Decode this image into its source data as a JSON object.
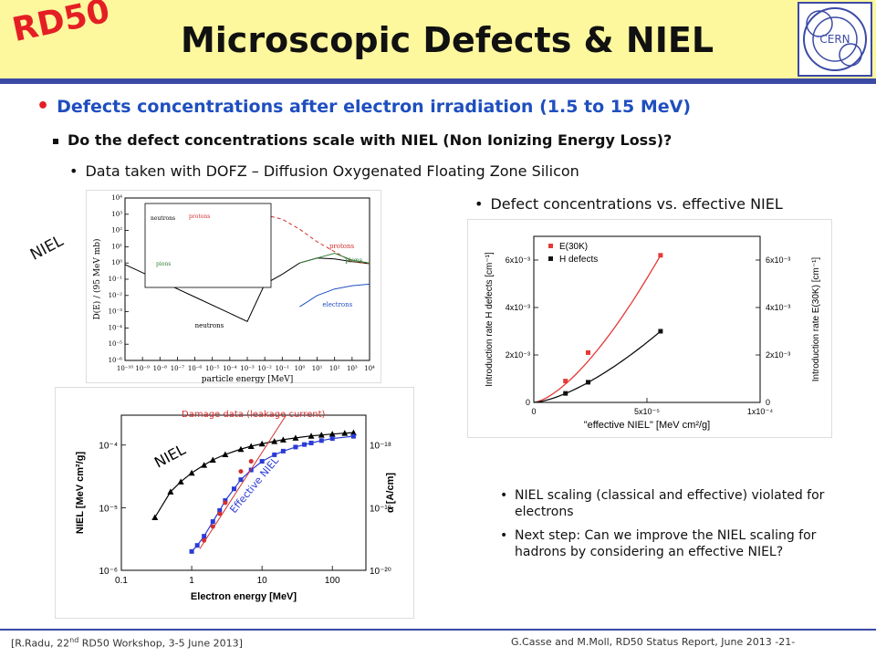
{
  "header": {
    "logo_text": "RD50",
    "title": "Microscopic Defects & NIEL",
    "cern_logo": "CERN"
  },
  "bullets": {
    "level1": "Defects concentrations after electron irradiation (1.5 to 15 MeV)",
    "level2": "Do the defect concentrations scale with NIEL (Non Ionizing Energy Loss)?",
    "level3": "Data taken with DOFZ – Diffusion Oxygenated Floating Zone Silicon",
    "level3b": "Defect concentrations vs. effective NIEL"
  },
  "niel_side_label": "NIEL",
  "right_bullets": [
    "NIEL scaling (classical and effective) violated for electrons",
    "Next step: Can we improve the NIEL scaling for hadrons by considering an effective NIEL?"
  ],
  "footer": {
    "left_prefix": "[R.Radu, 22",
    "left_sup": "nd",
    "left_suffix": " RD50 Workshop, 3-5 June 2013]",
    "right": "G.Casse and M.Moll, RD50 Status Report, June 2013 -21-"
  },
  "chart_data": [
    {
      "type": "line",
      "xlabel": "particle energy [MeV]",
      "ylabel": "D(E) / (95 MeV mb)",
      "xscale": "log",
      "yscale": "log",
      "xlim": [
        1e-10,
        10000
      ],
      "ylim": [
        1e-06,
        10000
      ],
      "xticks": [
        "10⁻¹⁰",
        "10⁻⁹",
        "10⁻⁸",
        "10⁻⁷",
        "10⁻⁶",
        "10⁻⁵",
        "10⁻⁴",
        "10⁻³",
        "10⁻²",
        "10⁻¹",
        "10⁰",
        "10¹",
        "10²",
        "10³",
        "10⁴"
      ],
      "yticks": [
        "10⁻⁶",
        "10⁻⁵",
        "10⁻⁴",
        "10⁻³",
        "10⁻²",
        "10⁻¹",
        "10⁰",
        "10¹",
        "10²",
        "10³",
        "10⁴"
      ],
      "annotations": [
        "neutrons",
        "protons",
        "pions",
        "electrons",
        "neutrons",
        "protons",
        "pions"
      ],
      "series": [
        {
          "name": "neutrons",
          "x": [
            1e-10,
            1e-08,
            1e-06,
            0.0001,
            0.001,
            0.01,
            0.1,
            1,
            10,
            100,
            1000,
            10000
          ],
          "y": [
            0.8,
            0.08,
            0.008,
            0.0008,
            0.00025,
            0.05,
            0.2,
            1,
            2,
            1.8,
            1.2,
            0.9
          ]
        },
        {
          "name": "protons",
          "x": [
            0.01,
            0.1,
            1,
            10,
            100,
            1000,
            10000
          ],
          "y": [
            900,
            500,
            120,
            20,
            5,
            1.2,
            0.9
          ]
        },
        {
          "name": "pions",
          "x": [
            1,
            10,
            100,
            1000,
            10000
          ],
          "y": [
            1,
            2,
            4,
            1.5,
            1
          ]
        },
        {
          "name": "electrons",
          "x": [
            1,
            10,
            100,
            1000,
            10000
          ],
          "y": [
            0.002,
            0.01,
            0.025,
            0.04,
            0.05
          ]
        }
      ],
      "colors": {
        "neutrons": "#000000",
        "protons": "#d32f2f",
        "pions": "#2e7d32",
        "electrons": "#1f4fbf"
      }
    },
    {
      "type": "scatter",
      "xlabel": "Electron energy [MeV]",
      "ylabel": "NIEL [MeV cm²/g]",
      "y2label": "α [A/cm]",
      "xscale": "log",
      "yscale": "log",
      "xlim": [
        0.1,
        300
      ],
      "ylim": [
        1e-06,
        0.0003
      ],
      "xticks": [
        "0.1",
        "1",
        "10",
        "100"
      ],
      "yticks": [
        "10⁻⁶",
        "10⁻⁵",
        "10⁻⁴"
      ],
      "y2ticks": [
        "10⁻²⁰",
        "10⁻¹⁹",
        "10⁻¹⁸"
      ],
      "annotations": [
        "Damage data (leakage current)",
        "NIEL",
        "Effective NIEL"
      ],
      "series": [
        {
          "name": "NIEL",
          "x": [
            0.3,
            0.5,
            0.7,
            1,
            1.5,
            2,
            3,
            5,
            7,
            10,
            15,
            20,
            30,
            50,
            70,
            100,
            150,
            200
          ],
          "y": [
            7e-06,
            1.8e-05,
            2.6e-05,
            3.6e-05,
            4.8e-05,
            5.8e-05,
            7.1e-05,
            8.6e-05,
            9.6e-05,
            0.000105,
            0.000115,
            0.000122,
            0.00013,
            0.00014,
            0.000145,
            0.00015,
            0.000155,
            0.000158
          ]
        },
        {
          "name": "Effective NIEL",
          "x": [
            1,
            1.2,
            1.5,
            2,
            2.5,
            3,
            4,
            5,
            7,
            10,
            15,
            20,
            30,
            40,
            50,
            70,
            100,
            200
          ],
          "y": [
            2e-06,
            2.5e-06,
            3.5e-06,
            6e-06,
            9e-06,
            1.3e-05,
            2e-05,
            2.8e-05,
            4e-05,
            5.5e-05,
            7e-05,
            8e-05,
            9.3e-05,
            0.000102,
            0.000108,
            0.000118,
            0.000127,
            0.000138
          ]
        },
        {
          "name": "Damage data (leakage current)",
          "x": [
            1.5,
            2,
            2.5,
            3,
            5,
            7
          ],
          "y": [
            3e-06,
            5e-06,
            8e-06,
            1.2e-05,
            3.8e-05,
            5.5e-05
          ]
        }
      ],
      "colors": {
        "NIEL": "#000000",
        "Effective NIEL": "#2b3bd6",
        "Damage data (leakage current)": "#d32f2f"
      }
    },
    {
      "type": "scatter",
      "xlabel": "\"effective NIEL\" [MeV cm²/g]",
      "ylabel": "Introduction rate H defects [cm⁻¹]",
      "y2label": "Introduction rate E(30K) [cm⁻¹]",
      "xlim": [
        0,
        0.0001
      ],
      "ylim": [
        0,
        0.007
      ],
      "xticks": [
        "0",
        "5x10⁻⁵",
        "1x10⁻⁴"
      ],
      "yticks": [
        "0",
        "2x10⁻³",
        "4x10⁻³",
        "6x10⁻³"
      ],
      "y2ticks": [
        "0",
        "2x10⁻³",
        "4x10⁻³",
        "6x10⁻³"
      ],
      "legend": [
        "E(30K)",
        "H defects"
      ],
      "legend_position": "top-left",
      "series": [
        {
          "name": "E(30K)",
          "x": [
            0,
            1.4e-05,
            2.4e-05,
            5.6e-05
          ],
          "y": [
            0,
            0.0009,
            0.0021,
            0.0062
          ]
        },
        {
          "name": "H defects",
          "x": [
            0,
            1.4e-05,
            2.4e-05,
            5.6e-05
          ],
          "y": [
            0,
            0.00038,
            0.00085,
            0.003
          ]
        }
      ],
      "colors": {
        "E(30K)": "#e53935",
        "H defects": "#111111"
      }
    }
  ]
}
